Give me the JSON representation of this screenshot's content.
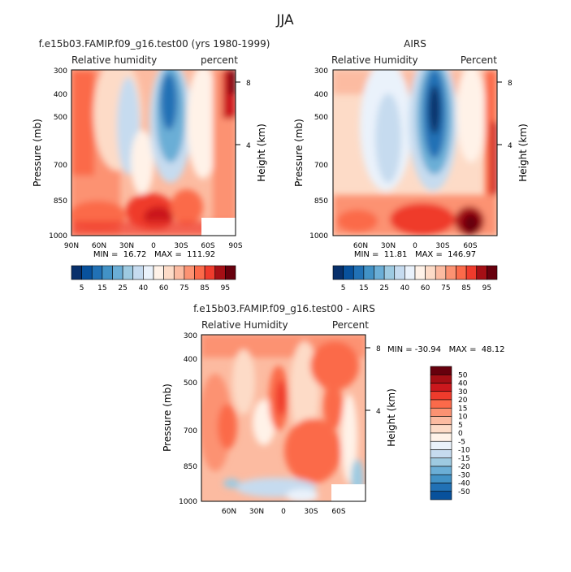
{
  "title": "JJA",
  "colors": {
    "red_scale": [
      "#fff2e8",
      "#fddbc7",
      "#fcbba1",
      "#fc9272",
      "#fb6a4a",
      "#ef3b2c",
      "#cb181d",
      "#a50f15",
      "#67000d"
    ],
    "blue_scale": [
      "#eaf2fb",
      "#c6dbef",
      "#9ecae1",
      "#6baed6",
      "#4292c6",
      "#2171b5",
      "#08519c",
      "#08306b"
    ]
  },
  "chart_data": [
    {
      "id": "model",
      "type": "heatmap",
      "title": "f.e15b03.FAMIP.f09_g16.test00 (yrs 1980-1999)",
      "left_label": "Relative humidity",
      "right_label": "percent",
      "ylabel": "Pressure (mb)",
      "y2label": "Height (km)",
      "yticks": [
        300,
        400,
        500,
        700,
        850,
        1000
      ],
      "y2ticks": [
        8,
        4
      ],
      "xticks": [
        "90N",
        "60N",
        "30N",
        "0",
        "30S",
        "60S",
        "90S"
      ],
      "minmax": "MIN =  16.72   MAX =  111.92",
      "colorbar_labels": [
        "5",
        "15",
        "25",
        "40",
        "60",
        "75",
        "85",
        "95"
      ]
    },
    {
      "id": "airs",
      "type": "heatmap",
      "title": "AIRS",
      "left_label": "Relative Humidity",
      "right_label": "Percent",
      "ylabel": "Pressure (mb)",
      "y2label": "Height (km)",
      "yticks": [
        300,
        400,
        500,
        700,
        850,
        1000
      ],
      "y2ticks": [
        8,
        4
      ],
      "xticks": [
        "60N",
        "30N",
        "0",
        "30S",
        "60S"
      ],
      "minmax": "MIN =  11.81   MAX =  146.97",
      "colorbar_labels": [
        "5",
        "15",
        "25",
        "40",
        "60",
        "75",
        "85",
        "95"
      ]
    },
    {
      "id": "diff",
      "type": "heatmap",
      "title": "f.e15b03.FAMIP.f09_g16.test00 - AIRS",
      "left_label": "Relative Humidity",
      "right_label": "Percent",
      "ylabel": "Pressure (mb)",
      "y2label": "Height (km)",
      "yticks": [
        300,
        400,
        500,
        700,
        850,
        1000
      ],
      "y2ticks": [
        8,
        4
      ],
      "xticks": [
        "60N",
        "30N",
        "0",
        "30S",
        "60S"
      ],
      "minmax": "MIN = -30.94   MAX =  48.12",
      "colorbar_labels": [
        "50",
        "40",
        "30",
        "20",
        "15",
        "10",
        "5",
        "0",
        "-5",
        "-10",
        "-15",
        "-20",
        "-30",
        "-40",
        "-50"
      ]
    }
  ]
}
